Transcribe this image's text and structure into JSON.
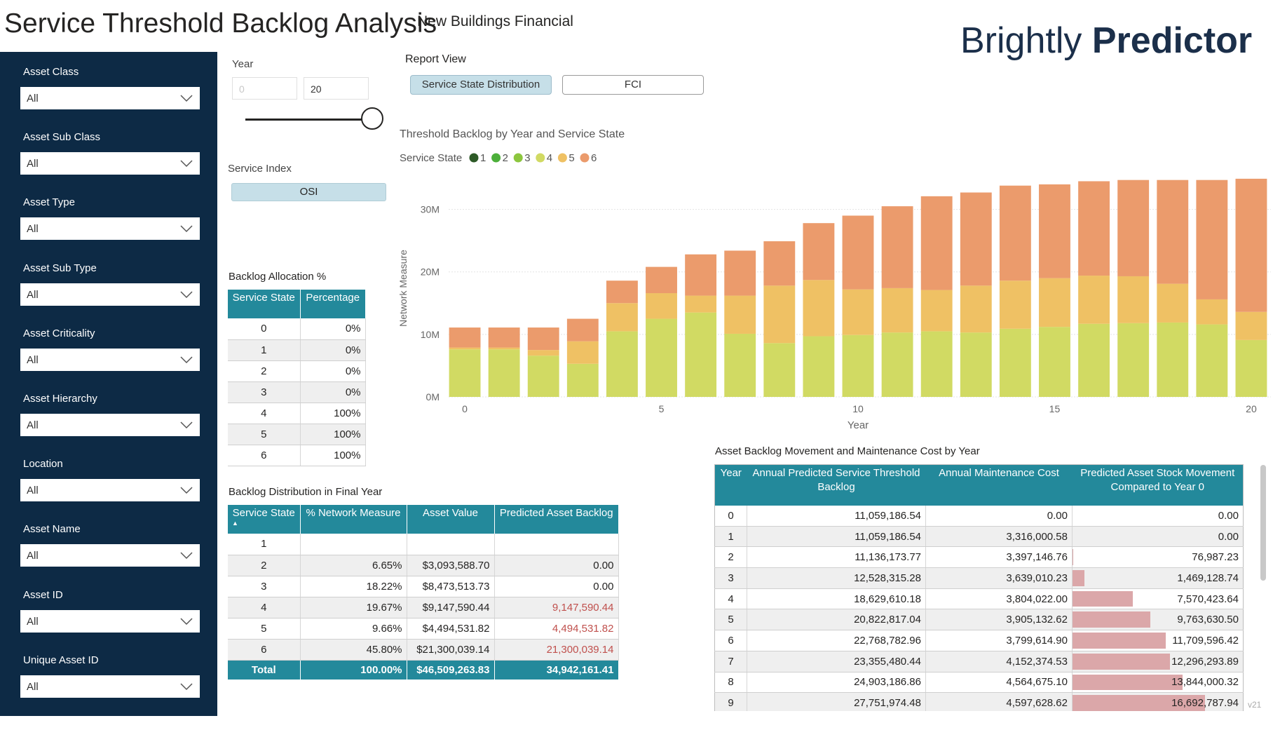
{
  "header": {
    "title": "Service Threshold Backlog Analysis",
    "subtitle": "New Buildings Financial",
    "brand": "Brightly",
    "product": "Predictor"
  },
  "filters": [
    {
      "label": "Asset Class",
      "value": "All"
    },
    {
      "label": "Asset Sub Class",
      "value": "All"
    },
    {
      "label": "Asset Type",
      "value": "All"
    },
    {
      "label": "Asset Sub Type",
      "value": "All"
    },
    {
      "label": "Asset Criticality",
      "value": "All"
    },
    {
      "label": "Asset Hierarchy",
      "value": "All"
    },
    {
      "label": "Location",
      "value": "All"
    },
    {
      "label": "Asset Name",
      "value": "All"
    },
    {
      "label": "Asset ID",
      "value": "All"
    },
    {
      "label": "Unique Asset ID",
      "value": "All"
    }
  ],
  "year": {
    "label": "Year",
    "from": "0",
    "to": "20"
  },
  "report_view": {
    "label": "Report View",
    "options": [
      "Service State Distribution",
      "FCI"
    ]
  },
  "service_index": {
    "label": "Service Index",
    "options": [
      "OSI"
    ]
  },
  "allocation": {
    "title": "Backlog Allocation %",
    "columns": [
      "Service State",
      "Percentage"
    ],
    "rows": [
      [
        "0",
        "0%"
      ],
      [
        "1",
        "0%"
      ],
      [
        "2",
        "0%"
      ],
      [
        "3",
        "0%"
      ],
      [
        "4",
        "100%"
      ],
      [
        "5",
        "100%"
      ],
      [
        "6",
        "100%"
      ]
    ]
  },
  "distribution": {
    "title": "Backlog Distribution in Final Year",
    "columns": [
      "Service State",
      "% Network Measure",
      "Asset Value",
      "Predicted Asset Backlog"
    ],
    "rows": [
      [
        "1",
        null,
        null,
        null
      ],
      [
        "2",
        "6.65%",
        "$3,093,588.70",
        "0.00"
      ],
      [
        "3",
        "18.22%",
        "$8,473,513.73",
        "0.00"
      ],
      [
        "4",
        "19.67%",
        "$9,147,590.44",
        "9,147,590.44"
      ],
      [
        "5",
        "9.66%",
        "$4,494,531.82",
        "4,494,531.82"
      ],
      [
        "6",
        "45.80%",
        "$21,300,039.14",
        "21,300,039.14"
      ]
    ],
    "total": [
      "Total",
      "100.00%",
      "$46,509,263.83",
      "34,942,161.41"
    ],
    "backlog_color": "#c0504d"
  },
  "movement": {
    "title": "Asset Backlog Movement and Maintenance Cost by Year",
    "columns": [
      "Year",
      "Annual Predicted Service Threshold Backlog",
      "Annual Maintenance Cost",
      "Predicted Asset Stock Movement Compared to Year 0"
    ],
    "rows": [
      [
        "0",
        "11,059,186.54",
        "0.00"
      ],
      [
        "1",
        "11,059,186.54",
        "3,316,000.58"
      ],
      [
        "2",
        "11,136,173.77",
        "3,397,146.76"
      ],
      [
        "3",
        "12,528,315.28",
        "3,639,010.23"
      ],
      [
        "4",
        "18,629,610.18",
        "3,804,022.00"
      ],
      [
        "5",
        "20,822,817.04",
        "3,905,132.62"
      ],
      [
        "6",
        "22,768,782.96",
        "3,799,614.90"
      ],
      [
        "7",
        "23,355,480.44",
        "4,152,374.53"
      ],
      [
        "8",
        "24,903,186.86",
        "4,564,675.10"
      ],
      [
        "9",
        "27,751,974.48",
        "4,597,628.62"
      ]
    ],
    "stock_movement": {
      "values": [
        0,
        0,
        76987.23,
        1469128.74,
        7570423.64,
        9763630.5,
        11709596.42,
        12296293.89,
        13844000.32,
        16692787.94
      ],
      "value_labels": [
        "0.00",
        "0.00",
        "76,987.23",
        "1,469,128.74",
        "7,570,423.64",
        "9,763,630.50",
        "11,709,596.42",
        "12,296,293.89",
        "13,844,000.32",
        "16,692,787.94"
      ],
      "color": "#dba7a9"
    }
  },
  "version": "v21",
  "chart_data": {
    "type": "stacked-bar",
    "title": "Threshold Backlog by Year and Service State",
    "legend_title": "Service State",
    "x_label": "Year",
    "y_label": "Network Measure",
    "x": [
      0,
      1,
      2,
      3,
      4,
      5,
      6,
      7,
      8,
      9,
      10,
      11,
      12,
      13,
      14,
      15,
      16,
      17,
      18,
      19,
      20
    ],
    "xlim": [
      -0.5,
      20.5
    ],
    "xticks": [
      0,
      5,
      10,
      15,
      20
    ],
    "ylim": [
      0,
      35000000
    ],
    "yticks": [
      {
        "value": 0,
        "label": "0M"
      },
      {
        "value": 10000000,
        "label": "10M"
      },
      {
        "value": 20000000,
        "label": "20M"
      },
      {
        "value": 30000000,
        "label": "30M"
      }
    ],
    "grid": true,
    "series": [
      {
        "name": "1",
        "color": "#2d5a27",
        "values": [
          0,
          0,
          0,
          0,
          0,
          0,
          0,
          0,
          0,
          0,
          0,
          0,
          0,
          0,
          0,
          0,
          0,
          0,
          0,
          0,
          0
        ]
      },
      {
        "name": "2",
        "color": "#4caf3a",
        "values": [
          0,
          0,
          0,
          0,
          0,
          0,
          0,
          0,
          0,
          0,
          0,
          0,
          0,
          0,
          0,
          0,
          0,
          0,
          0,
          0,
          0
        ]
      },
      {
        "name": "3",
        "color": "#8cc63e",
        "values": [
          0,
          0,
          0,
          0,
          0,
          0,
          0,
          0,
          0,
          0,
          0,
          0,
          0,
          0,
          0,
          0,
          0,
          0,
          0,
          0,
          0
        ]
      },
      {
        "name": "4",
        "color": "#d1da63",
        "values": [
          7600000,
          7600000,
          6600000,
          5300000,
          10500000,
          12500000,
          13500000,
          10100000,
          8600000,
          9700000,
          9900000,
          10300000,
          10500000,
          10300000,
          10900000,
          11200000,
          11700000,
          11800000,
          11900000,
          11600000,
          9100000
        ]
      },
      {
        "name": "5",
        "color": "#efc164",
        "values": [
          300000,
          300000,
          900000,
          3600000,
          4500000,
          4100000,
          2700000,
          6100000,
          9200000,
          9000000,
          7300000,
          7100000,
          6600000,
          7500000,
          7700000,
          7800000,
          7700000,
          7500000,
          6200000,
          4000000,
          4500000
        ]
      },
      {
        "name": "6",
        "color": "#eb9b6c",
        "values": [
          3200000,
          3200000,
          3600000,
          3600000,
          3600000,
          4200000,
          6600000,
          7200000,
          7100000,
          9100000,
          11800000,
          13100000,
          15000000,
          14900000,
          15200000,
          15000000,
          15100000,
          15400000,
          16600000,
          19100000,
          21300000
        ]
      }
    ]
  }
}
